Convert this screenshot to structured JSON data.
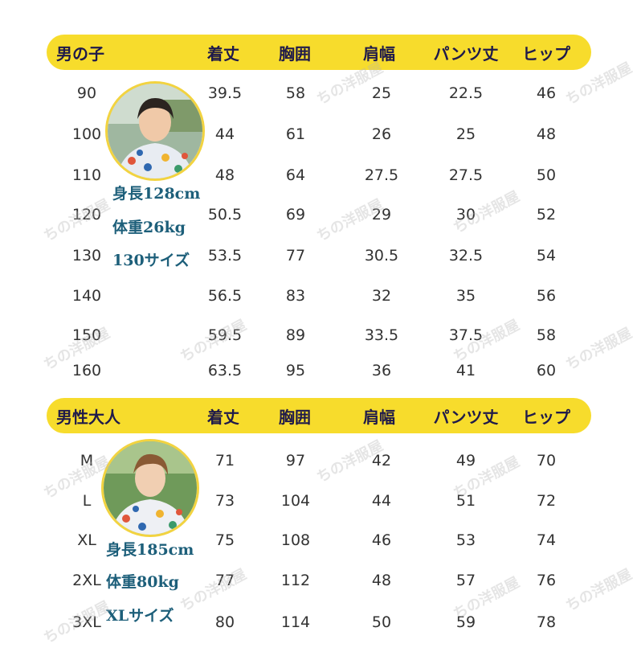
{
  "kids": {
    "headers": [
      "男の子",
      "着丈",
      "胸囲",
      "肩幅",
      "パンツ丈",
      "ヒップ"
    ],
    "rows": [
      [
        "90",
        "39.5",
        "58",
        "25",
        "22.5",
        "46"
      ],
      [
        "100",
        "44",
        "61",
        "26",
        "25",
        "48"
      ],
      [
        "110",
        "48",
        "64",
        "27.5",
        "27.5",
        "50"
      ],
      [
        "120",
        "50.5",
        "69",
        "29",
        "30",
        "52"
      ],
      [
        "130",
        "53.5",
        "77",
        "30.5",
        "32.5",
        "54"
      ],
      [
        "140",
        "56.5",
        "83",
        "32",
        "35",
        "56"
      ],
      [
        "150",
        "59.5",
        "89",
        "33.5",
        "37.5",
        "58"
      ],
      [
        "160",
        "63.5",
        "95",
        "36",
        "41",
        "60"
      ]
    ],
    "model": [
      "身長128cm",
      "体重26kg",
      "130サイズ"
    ]
  },
  "adults": {
    "headers": [
      "男性大人",
      "着丈",
      "胸囲",
      "肩幅",
      "パンツ丈",
      "ヒップ"
    ],
    "rows": [
      [
        "M",
        "71",
        "97",
        "42",
        "49",
        "70"
      ],
      [
        "L",
        "73",
        "104",
        "44",
        "51",
        "72"
      ],
      [
        "XL",
        "75",
        "108",
        "46",
        "53",
        "74"
      ],
      [
        "2XL",
        "77",
        "112",
        "48",
        "57",
        "76"
      ],
      [
        "3XL",
        "80",
        "114",
        "50",
        "59",
        "78"
      ]
    ],
    "model": [
      "身長185cm",
      "体重80kg",
      "XLサイズ"
    ]
  },
  "watermark": "ちの洋服屋",
  "colors": {
    "header_bar": "#f7dc2c",
    "header_text": "#1f1a4a",
    "model_text": "#1d5f7a"
  }
}
